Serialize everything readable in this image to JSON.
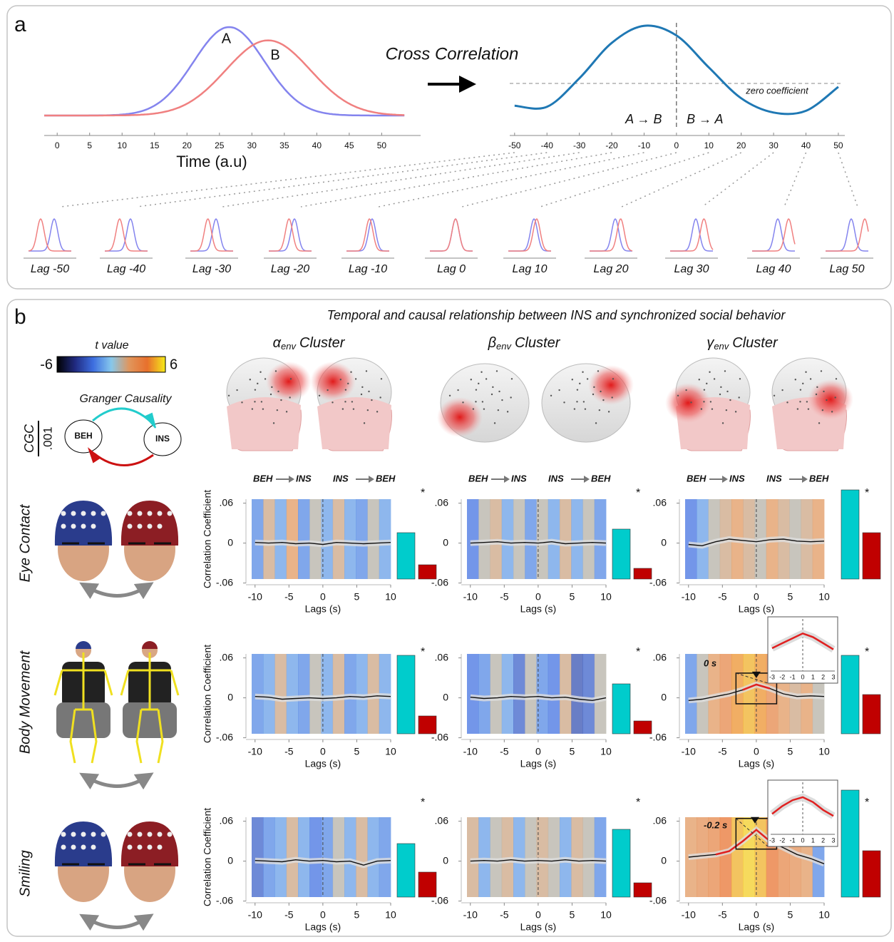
{
  "panel_a": {
    "label": "a",
    "time_plot": {
      "xlabel": "Time (a.u)",
      "xlim": [
        -2,
        56
      ],
      "xticks": [
        0,
        5,
        10,
        15,
        20,
        25,
        30,
        35,
        40,
        45,
        50
      ],
      "series": [
        {
          "name": "A",
          "color": "#8484ee",
          "center": 26.5,
          "sd": 5.5,
          "peak": 1
        },
        {
          "name": "B",
          "color": "#f08080",
          "center": 32.5,
          "sd": 6.5,
          "peak": 0.85
        }
      ]
    },
    "arrow_label": "Cross Correlation",
    "xcorr_plot": {
      "x": [
        -50,
        -40,
        -30,
        -20,
        -10,
        0,
        10,
        20,
        30,
        40,
        50
      ],
      "values": [
        -0.39,
        -0.41,
        0.09,
        0.71,
        1.01,
        0.84,
        0.28,
        -0.26,
        -0.51,
        -0.48,
        -0.06
      ],
      "color": "#1f78b4",
      "xlim": [
        -51.5,
        52
      ],
      "xticks": [
        -50,
        -40,
        -30,
        -20,
        -10,
        0,
        10,
        20,
        30,
        40,
        50
      ],
      "zero_label": "zero coefficient",
      "direction_labels": [
        "A → B",
        "B → A"
      ]
    },
    "lag_labels": [
      "Lag -50",
      "Lag -40",
      "Lag -30",
      "Lag -20",
      "Lag -10",
      "Lag 0",
      "Lag 10",
      "Lag 20",
      "Lag 30",
      "Lag 40",
      "Lag 50"
    ]
  },
  "panel_b": {
    "label": "b",
    "title": "Temporal and causal relationship between INS and synchronized social behavior",
    "colorbar": {
      "label": "t value",
      "lim": [
        -6,
        6
      ],
      "colors": [
        "#000000",
        "#202a80",
        "#3d6ee0",
        "#86c8ec",
        "#e0955c",
        "#e8702c",
        "#f6ea1a"
      ]
    },
    "granger": {
      "title": "Granger Causality",
      "nodes": [
        "BEH",
        "INS"
      ],
      "colors": [
        "#22cccc",
        "#cc1111"
      ],
      "scale": {
        "label": "CGC",
        "value": {
          "value": 0.001,
          "label": ".001"
        }
      }
    },
    "clusters": [
      {
        "symbol": "α",
        "subscript": "env",
        "name": "Cluster"
      },
      {
        "symbol": "β",
        "subscript": "env",
        "name": "Cluster"
      },
      {
        "symbol": "γ",
        "subscript": "env",
        "name": "Cluster"
      }
    ],
    "direction_labels": [
      [
        "BEH",
        "INS"
      ],
      [
        "INS",
        "BEH"
      ]
    ],
    "behaviors": [
      "Eye Contact",
      "Body Movement",
      "Smiling"
    ],
    "ylabel": "Correlation Coefficient",
    "xlabel": "Lags (s)",
    "ylim": [
      -0.054,
      0.066
    ],
    "yticks": [
      {
        "value": 0.06,
        "label": ".06"
      },
      0,
      {
        "value": -0.06,
        "label": "-.06"
      }
    ],
    "xlim": [
      -10.5,
      10
    ],
    "xticks": [
      -10,
      -5,
      0,
      5,
      10
    ],
    "lags": [
      -10,
      -8,
      -6,
      -4,
      -2,
      0,
      2,
      4,
      6,
      8,
      10
    ],
    "bar_colors": [
      "#00cccc",
      "#c00000"
    ],
    "significance": "*",
    "panels": [
      [
        {
          "t_values": [
            -1.5,
            1.5,
            -1,
            2,
            -1.5,
            1,
            -1,
            1.5,
            -1,
            -1.5,
            1,
            -1
          ],
          "values": [
            0.001,
            0,
            0.001,
            -0.001,
            0,
            -0.002,
            0.001,
            0,
            -0.001,
            0,
            0.001
          ],
          "cgc": [
            0.0013,
            0.0004
          ]
        },
        {
          "t_values": [
            -2,
            1,
            1.5,
            -1,
            1,
            -1.5,
            1,
            -1,
            1.5,
            -1,
            1,
            -1.5
          ],
          "values": [
            0,
            0.001,
            0.002,
            0,
            0.001,
            0,
            0.002,
            -0.001,
            0,
            0.001,
            0
          ],
          "cgc": [
            0.0014,
            0.0003
          ]
        },
        {
          "t_values": [
            -2,
            -1,
            1,
            1.5,
            2,
            1.5,
            1,
            2,
            1.5,
            1,
            1.5,
            2
          ],
          "values": [
            -0.002,
            -0.004,
            0.002,
            0.006,
            0.004,
            0.002,
            0.005,
            0.006,
            0.003,
            0.002,
            0.003
          ],
          "cgc": [
            0.0025,
            0.0013
          ]
        }
      ],
      [
        {
          "t_values": [
            -1.5,
            -1,
            1.5,
            -1,
            -1.5,
            1,
            -1,
            1.5,
            -1.5,
            -1,
            1.5,
            -1
          ],
          "values": [
            0.002,
            0.001,
            -0.002,
            -0.001,
            0,
            -0.001,
            0,
            0.002,
            0.001,
            0.003,
            0.002
          ],
          "cgc": [
            0.0022,
            0.0005
          ]
        },
        {
          "t_values": [
            -2,
            -1.5,
            1,
            -1,
            -2.5,
            1,
            -1.5,
            -2,
            1.5,
            -3,
            -2.5,
            1
          ],
          "values": [
            0.001,
            -0.001,
            0,
            0.002,
            0.001,
            0.002,
            0,
            0.001,
            -0.002,
            -0.004,
            0
          ],
          "cgc": [
            0.0014,
            0.00036
          ]
        },
        {
          "t_values": [
            -1.5,
            1,
            2,
            3,
            4.5,
            5,
            4.5,
            3,
            2,
            1.5,
            2,
            1
          ],
          "values": [
            -0.004,
            -0.002,
            0.002,
            0.006,
            0.012,
            0.02,
            0.014,
            0.006,
            0.002,
            0.003,
            0.002
          ],
          "cgc": [
            0.0022,
            0.0011
          ],
          "significant_lags": [
            -2,
            2
          ],
          "inset": {
            "peak": {
              "value": 0,
              "label": "0 s"
            },
            "lags": [
              -3,
              -2,
              -1,
              0,
              1,
              2,
              3
            ],
            "values": [
              0.008,
              0.012,
              0.016,
              0.02,
              0.017,
              0.012,
              0.007
            ],
            "xticks": [
              -3,
              -2,
              -1,
              0,
              1,
              2,
              3
            ],
            "ylim": [
              -0.01,
              0.03
            ]
          }
        }
      ],
      [
        {
          "t_values": [
            -2.5,
            -1.5,
            -1,
            1.5,
            -1,
            -2,
            -1.5,
            1,
            -1,
            1.5,
            -1,
            -1.5
          ],
          "values": [
            0.001,
            0,
            -0.001,
            0.002,
            0,
            0.001,
            -0.001,
            0,
            -0.006,
            0,
            0.001
          ],
          "cgc": [
            0.0015,
            0.0007
          ]
        },
        {
          "t_values": [
            1.5,
            -1,
            1,
            1.5,
            -1,
            1,
            1.5,
            1,
            -1,
            1.5,
            1,
            -1.5
          ],
          "values": [
            0,
            0.001,
            0,
            0.002,
            0,
            0.001,
            0,
            0.002,
            0,
            0.001,
            0
          ],
          "cgc": [
            0.0019,
            0.0004
          ]
        },
        {
          "t_values": [
            2,
            2.5,
            3,
            4,
            5,
            5.5,
            5,
            4,
            3,
            2.5,
            2,
            -1.5
          ],
          "values": [
            0.006,
            0.008,
            0.01,
            0.015,
            0.03,
            0.047,
            0.03,
            0.02,
            0.01,
            0.004,
            -0.004
          ],
          "cgc": [
            0.003,
            0.0013
          ],
          "significant_lags": [
            -6,
            2
          ],
          "inset": {
            "peak": {
              "value": -0.2,
              "label": "-0.2 s"
            },
            "lags": [
              -3,
              -2,
              -1,
              0,
              1,
              2,
              3
            ],
            "values": [
              0.03,
              0.038,
              0.044,
              0.047,
              0.042,
              0.034,
              0.028
            ],
            "xticks": [
              -3,
              -2,
              -1,
              0,
              1,
              2,
              3
            ],
            "ylim": [
              0.01,
              0.06
            ]
          }
        }
      ]
    ]
  }
}
